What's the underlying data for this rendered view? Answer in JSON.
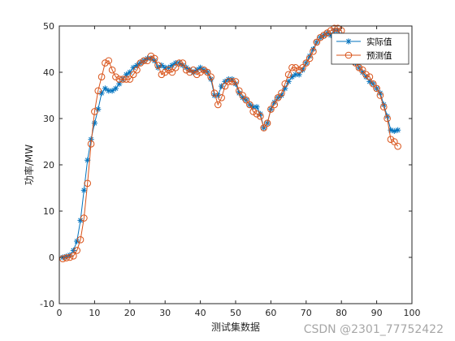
{
  "chart_data": {
    "type": "line",
    "xlabel": "测试集数据",
    "ylabel": "功率/MW",
    "xlim": [
      0,
      100
    ],
    "ylim": [
      -10,
      50
    ],
    "xticks": [
      0,
      10,
      20,
      30,
      40,
      50,
      60,
      70,
      80,
      90,
      100
    ],
    "yticks": [
      -10,
      0,
      10,
      20,
      30,
      40,
      50
    ],
    "legend_position": "top-right",
    "series": [
      {
        "name": "实际值",
        "color": "#0072BD",
        "marker": "asterisk",
        "x": [
          1,
          2,
          3,
          4,
          5,
          6,
          7,
          8,
          9,
          10,
          11,
          12,
          13,
          14,
          15,
          16,
          17,
          18,
          19,
          20,
          21,
          22,
          23,
          24,
          25,
          26,
          27,
          28,
          29,
          30,
          31,
          32,
          33,
          34,
          35,
          36,
          37,
          38,
          39,
          40,
          41,
          42,
          43,
          44,
          45,
          46,
          47,
          48,
          49,
          50,
          51,
          52,
          53,
          54,
          55,
          56,
          57,
          58,
          59,
          60,
          61,
          62,
          63,
          64,
          65,
          66,
          67,
          68,
          69,
          70,
          71,
          72,
          73,
          74,
          75,
          76,
          77,
          78,
          79,
          80,
          81,
          82,
          83,
          84,
          85,
          86,
          87,
          88,
          89,
          90,
          91,
          92,
          93,
          94,
          95,
          96
        ],
        "values": [
          0.0,
          0.2,
          0.5,
          1.5,
          3.5,
          8.0,
          14.5,
          21.0,
          25.5,
          29.0,
          32.0,
          35.5,
          36.5,
          36.0,
          36.0,
          36.5,
          37.5,
          38.5,
          39.5,
          40.0,
          41.0,
          41.5,
          42.0,
          42.5,
          43.0,
          43.0,
          42.5,
          41.0,
          41.5,
          41.0,
          41.0,
          41.5,
          42.0,
          42.0,
          41.5,
          41.0,
          40.5,
          40.0,
          40.5,
          41.0,
          40.5,
          40.0,
          38.5,
          35.0,
          35.0,
          37.0,
          38.0,
          38.5,
          38.5,
          37.5,
          35.5,
          34.5,
          34.0,
          33.0,
          32.5,
          32.5,
          31.0,
          28.0,
          29.0,
          32.0,
          33.5,
          34.5,
          35.0,
          36.5,
          38.0,
          39.0,
          39.5,
          39.5,
          40.5,
          42.0,
          43.5,
          45.0,
          46.5,
          47.5,
          48.0,
          48.5,
          48.0,
          49.0,
          49.0,
          48.0,
          45.0,
          43.5,
          42.5,
          42.0,
          41.0,
          40.0,
          39.0,
          38.0,
          37.5,
          36.5,
          35.5,
          33.0,
          30.5,
          27.5,
          27.3,
          27.5
        ]
      },
      {
        "name": "预测值",
        "color": "#D95319",
        "marker": "circle",
        "x": [
          1,
          2,
          3,
          4,
          5,
          6,
          7,
          8,
          9,
          10,
          11,
          12,
          13,
          14,
          15,
          16,
          17,
          18,
          19,
          20,
          21,
          22,
          23,
          24,
          25,
          26,
          27,
          28,
          29,
          30,
          31,
          32,
          33,
          34,
          35,
          36,
          37,
          38,
          39,
          40,
          41,
          42,
          43,
          44,
          45,
          46,
          47,
          48,
          49,
          50,
          51,
          52,
          53,
          54,
          55,
          56,
          57,
          58,
          59,
          60,
          61,
          62,
          63,
          64,
          65,
          66,
          67,
          68,
          69,
          70,
          71,
          72,
          73,
          74,
          75,
          76,
          77,
          78,
          79,
          80,
          81,
          82,
          83,
          84,
          85,
          86,
          87,
          88,
          89,
          90,
          91,
          92,
          93,
          94,
          95,
          96
        ],
        "values": [
          -0.3,
          -0.1,
          0.0,
          0.3,
          1.5,
          3.8,
          8.5,
          16.0,
          24.5,
          31.5,
          36.0,
          39.0,
          42.0,
          42.5,
          40.5,
          39.0,
          38.5,
          38.5,
          38.5,
          38.5,
          39.5,
          40.5,
          42.0,
          42.5,
          42.5,
          43.5,
          43.0,
          41.5,
          39.5,
          40.0,
          40.5,
          40.0,
          41.0,
          42.0,
          42.0,
          40.5,
          40.0,
          40.5,
          39.5,
          40.0,
          40.5,
          40.0,
          39.0,
          35.5,
          33.0,
          34.5,
          37.0,
          38.0,
          38.0,
          38.0,
          36.0,
          35.0,
          34.0,
          33.0,
          31.5,
          31.0,
          30.5,
          28.0,
          29.0,
          32.0,
          33.0,
          34.5,
          35.5,
          37.5,
          39.5,
          41.0,
          41.0,
          40.5,
          41.0,
          42.0,
          43.0,
          44.5,
          46.5,
          47.5,
          48.0,
          48.5,
          49.0,
          49.5,
          49.5,
          49.0,
          46.5,
          45.0,
          43.5,
          42.0,
          41.0,
          40.5,
          39.5,
          39.0,
          37.5,
          36.5,
          35.0,
          32.5,
          30.0,
          25.5,
          25.0,
          24.0
        ]
      }
    ]
  },
  "watermark": "CSDN @2301_77752422"
}
